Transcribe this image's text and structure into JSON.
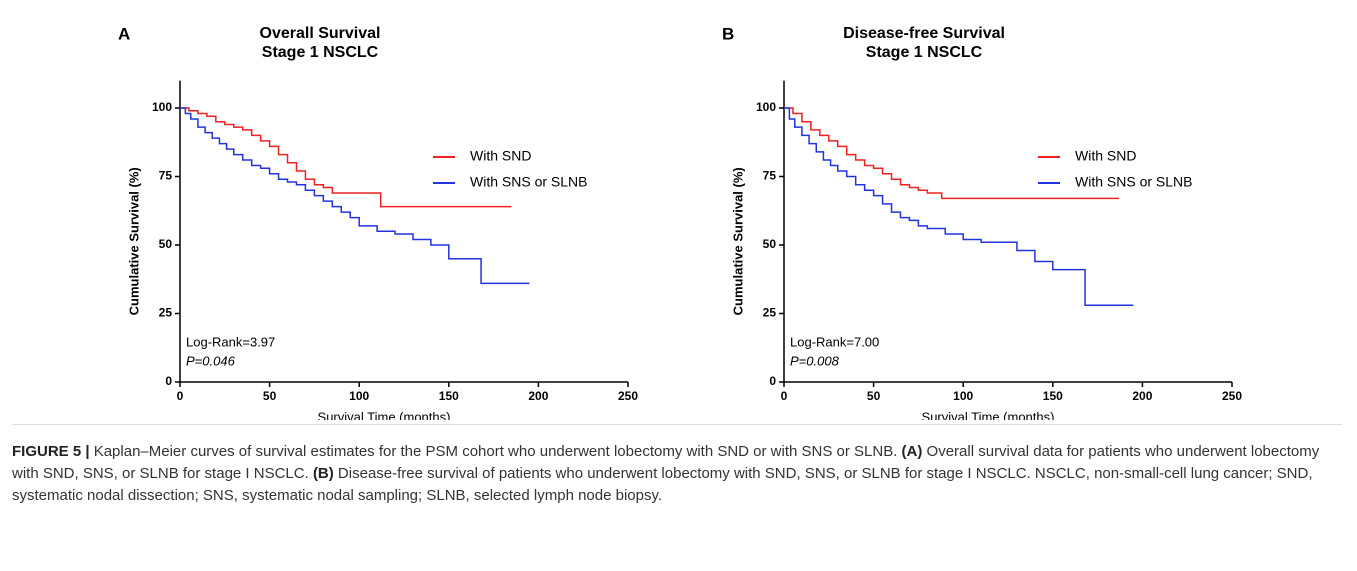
{
  "chart_data": [
    {
      "type": "line",
      "drawstyle": "steps-post",
      "panel_label": "A",
      "title": "Overall Survival",
      "subtitle": "Stage 1 NSCLC",
      "xlabel": "Survival Time (months)",
      "ylabel": "Cumulative Survival (%)",
      "xlim": [
        0,
        250
      ],
      "xticks": [
        0,
        50,
        100,
        150,
        200,
        250
      ],
      "ylim": [
        0,
        110
      ],
      "yticks": [
        0,
        25,
        50,
        75,
        100
      ],
      "annotations": [
        "Log-Rank=3.97",
        "P=0.046"
      ],
      "legend": "upper right",
      "series": [
        {
          "name": "With SND",
          "color": "#ee2222",
          "x": [
            0,
            5,
            10,
            15,
            20,
            25,
            30,
            35,
            40,
            45,
            50,
            55,
            60,
            65,
            70,
            75,
            80,
            85,
            112,
            185
          ],
          "values": [
            100,
            99,
            98,
            97,
            95,
            94,
            93,
            92,
            90,
            88,
            86,
            83,
            80,
            77,
            74,
            72,
            71,
            69,
            64,
            64
          ]
        },
        {
          "name": "With SNS or SLNB",
          "color": "#2233dd",
          "x": [
            0,
            3,
            6,
            10,
            14,
            18,
            22,
            26,
            30,
            35,
            40,
            45,
            50,
            55,
            60,
            65,
            70,
            75,
            80,
            85,
            90,
            95,
            100,
            110,
            120,
            130,
            140,
            150,
            160,
            168,
            195
          ],
          "values": [
            100,
            98,
            96,
            93,
            91,
            89,
            87,
            85,
            83,
            81,
            79,
            78,
            76,
            74,
            73,
            72,
            70,
            68,
            66,
            64,
            62,
            60,
            57,
            55,
            54,
            52,
            50,
            45,
            45,
            36,
            36
          ]
        }
      ]
    },
    {
      "type": "line",
      "drawstyle": "steps-post",
      "panel_label": "B",
      "title": "Disease-free Survival",
      "subtitle": "Stage 1 NSCLC",
      "xlabel": "Survival Time (months)",
      "ylabel": "Cumulative Survival (%)",
      "xlim": [
        0,
        250
      ],
      "xticks": [
        0,
        50,
        100,
        150,
        200,
        250
      ],
      "ylim": [
        0,
        110
      ],
      "yticks": [
        0,
        25,
        50,
        75,
        100
      ],
      "annotations": [
        "Log-Rank=7.00",
        "P=0.008"
      ],
      "legend": "upper right",
      "series": [
        {
          "name": "With SND",
          "color": "#ee2222",
          "x": [
            0,
            5,
            10,
            15,
            20,
            25,
            30,
            35,
            40,
            45,
            50,
            55,
            60,
            65,
            70,
            75,
            80,
            88,
            187
          ],
          "values": [
            100,
            98,
            95,
            92,
            90,
            88,
            86,
            83,
            81,
            79,
            78,
            76,
            74,
            72,
            71,
            70,
            69,
            67,
            67
          ]
        },
        {
          "name": "With SNS or SLNB",
          "color": "#2233dd",
          "x": [
            0,
            3,
            6,
            10,
            14,
            18,
            22,
            26,
            30,
            35,
            40,
            45,
            50,
            55,
            60,
            65,
            70,
            75,
            80,
            90,
            100,
            110,
            120,
            130,
            140,
            150,
            160,
            168,
            195
          ],
          "values": [
            100,
            96,
            93,
            90,
            87,
            84,
            81,
            79,
            77,
            75,
            72,
            70,
            68,
            65,
            62,
            60,
            59,
            57,
            56,
            54,
            52,
            51,
            51,
            48,
            44,
            41,
            41,
            28,
            28
          ]
        }
      ]
    }
  ],
  "caption": {
    "label": "FIGURE 5 |",
    "text": " Kaplan–Meier curves of survival estimates for the PSM cohort who underwent lobectomy with SND or with SNS or SLNB. ",
    "a": "(A)",
    "a_text": " Overall survival data for patients who underwent lobectomy with SND, SNS, or SLNB for stage I NSCLC. ",
    "b": "(B)",
    "b_text": " Disease-free survival of patients who underwent lobectomy with SND, SNS, or SLNB for stage I NSCLC. NSCLC, non-small-cell lung cancer; SND, systematic nodal dissection; SNS, systematic nodal sampling; SLNB, selected lymph node biopsy."
  }
}
